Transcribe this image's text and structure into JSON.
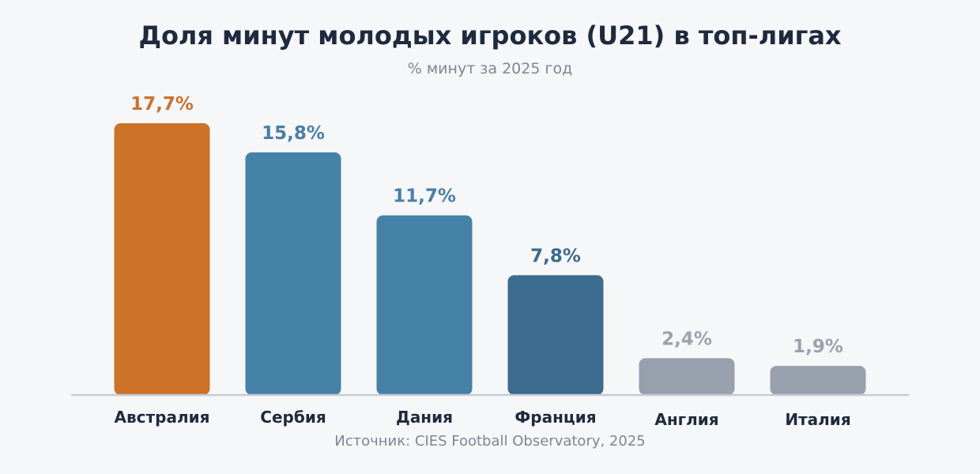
{
  "chart_data": {
    "type": "bar",
    "title": "Доля минут молодых игроков (U21) в топ-лигах",
    "subtitle": "% минут за 2025 год",
    "source": "Источник: CIES Football Observatory, 2025",
    "categories": [
      "Австралия",
      "Сербия",
      "Дания",
      "Франция",
      "Англия",
      "Италия"
    ],
    "values": [
      17.7,
      15.8,
      11.7,
      7.8,
      2.4,
      1.9
    ],
    "value_labels": [
      "17,7%",
      "15,8%",
      "11,7%",
      "7,8%",
      "2,4%",
      "1,9%"
    ],
    "ylim": [
      0,
      17.7
    ],
    "grid": false,
    "legend": "none",
    "colors": [
      "#cc7329",
      "#4682a7",
      "#4682a7",
      "#3c6c8f",
      "#989fad",
      "#989fad"
    ],
    "label_colors": [
      "#c8732f",
      "#4a7fa3",
      "#4a7fa3",
      "#3c6a8b",
      "#9aa2b0",
      "#9aa2b0"
    ],
    "axis_color": "#c5cad3",
    "category_label_color": "#1f2a3e"
  }
}
